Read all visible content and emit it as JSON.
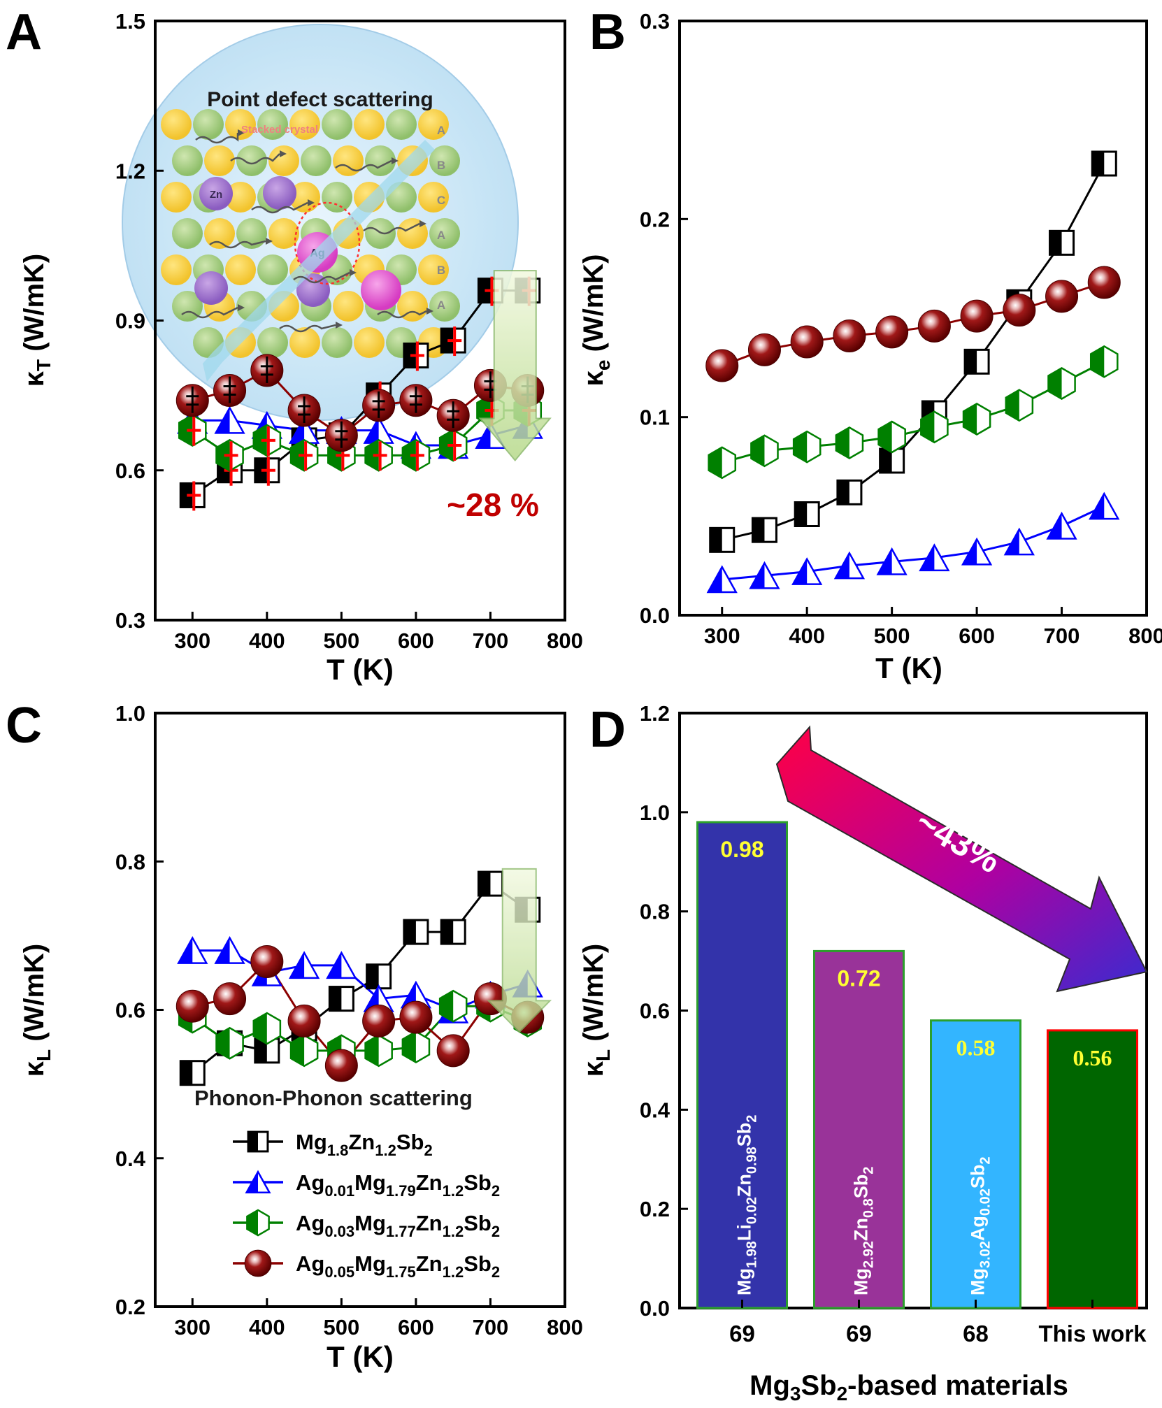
{
  "panels": [
    {
      "letter": "A"
    },
    {
      "letter": "B"
    },
    {
      "letter": "C"
    },
    {
      "letter": "D"
    }
  ],
  "inset": {
    "title": "Point defect scattering",
    "caption": "Stacked crystal",
    "atom_labels": [
      "Zn",
      "Ag"
    ],
    "stacking": [
      "A",
      "B",
      "C",
      "A",
      "B",
      "A"
    ]
  },
  "annotations": {
    "a_reduction": "~28 %",
    "c_scattering": "Phonon-Phonon scattering",
    "d_reduction": "~43%"
  },
  "legend": [
    {
      "marker": "square",
      "color": "#000000",
      "base": "Mg",
      "sub1": "1.8",
      "mid": "Zn",
      "sub2": "1.2",
      "end": "Sb",
      "sub3": "2"
    },
    {
      "marker": "triangle",
      "color": "#0000ff",
      "pre": "Ag",
      "sub0": "0.01",
      "base": "Mg",
      "sub1": "1.79",
      "mid": "Zn",
      "sub2": "1.2",
      "end": "Sb",
      "sub3": "2"
    },
    {
      "marker": "hexagon",
      "color": "#008000",
      "pre": "Ag",
      "sub0": "0.03",
      "base": "Mg",
      "sub1": "1.77",
      "mid": "Zn",
      "sub2": "1.2",
      "end": "Sb",
      "sub3": "2"
    },
    {
      "marker": "sphere",
      "color": "#8b0000",
      "pre": "Ag",
      "sub0": "0.05",
      "base": "Mg",
      "sub1": "1.75",
      "mid": "Zn",
      "sub2": "1.2",
      "end": "Sb",
      "sub3": "2"
    }
  ],
  "chart_data": [
    {
      "panel": "A",
      "type": "line",
      "xlabel": "T (K)",
      "ylabel": "κT (W/mK)",
      "ylabel_main": "κ",
      "ylabel_sub": "T",
      "ylabel_rest": " (W/mK)",
      "xlim": [
        250,
        800
      ],
      "ylim": [
        0.3,
        1.5
      ],
      "xticks": [
        300,
        400,
        500,
        600,
        700,
        800
      ],
      "yticks": [
        0.3,
        0.6,
        0.9,
        1.2,
        1.5
      ],
      "x": [
        300,
        350,
        400,
        450,
        500,
        550,
        600,
        650,
        700,
        750
      ],
      "series": [
        {
          "marker": "square",
          "color": "#000000",
          "values": [
            0.55,
            0.6,
            0.6,
            0.66,
            0.67,
            0.75,
            0.83,
            0.86,
            0.96,
            0.96
          ]
        },
        {
          "marker": "triangle",
          "color": "#0000ff",
          "values": [
            0.7,
            0.7,
            0.69,
            0.68,
            0.68,
            0.68,
            0.65,
            0.65,
            0.67,
            0.69
          ]
        },
        {
          "marker": "hexagon",
          "color": "#008000",
          "values": [
            0.68,
            0.63,
            0.66,
            0.63,
            0.63,
            0.63,
            0.63,
            0.65,
            0.72,
            0.72
          ]
        },
        {
          "marker": "sphere",
          "color": "#8b0000",
          "values": [
            0.74,
            0.76,
            0.8,
            0.72,
            0.67,
            0.73,
            0.74,
            0.71,
            0.77,
            0.76
          ]
        }
      ]
    },
    {
      "panel": "B",
      "type": "line",
      "xlabel": "T (K)",
      "ylabel": "κe (W/mK)",
      "ylabel_main": "κ",
      "ylabel_sub": "e",
      "ylabel_rest": " (W/mK)",
      "xlim": [
        250,
        800
      ],
      "ylim": [
        0.0,
        0.3
      ],
      "xticks": [
        300,
        400,
        500,
        600,
        700,
        800
      ],
      "yticks": [
        0.0,
        0.1,
        0.2,
        0.3
      ],
      "x": [
        300,
        350,
        400,
        450,
        500,
        550,
        600,
        650,
        700,
        750
      ],
      "series": [
        {
          "marker": "square",
          "color": "#000000",
          "values": [
            0.038,
            0.043,
            0.051,
            0.062,
            0.078,
            0.102,
            0.128,
            0.158,
            0.188,
            0.228
          ]
        },
        {
          "marker": "triangle",
          "color": "#0000ff",
          "values": [
            0.018,
            0.02,
            0.022,
            0.025,
            0.027,
            0.029,
            0.032,
            0.037,
            0.045,
            0.055
          ]
        },
        {
          "marker": "hexagon",
          "color": "#008000",
          "values": [
            0.077,
            0.083,
            0.085,
            0.087,
            0.09,
            0.095,
            0.099,
            0.106,
            0.117,
            0.128
          ]
        },
        {
          "marker": "sphere",
          "color": "#8b0000",
          "values": [
            0.126,
            0.134,
            0.138,
            0.141,
            0.143,
            0.146,
            0.151,
            0.154,
            0.161,
            0.168
          ]
        }
      ]
    },
    {
      "panel": "C",
      "type": "line",
      "xlabel": "T (K)",
      "ylabel": "κL (W/mK)",
      "ylabel_main": "κ",
      "ylabel_sub": "L",
      "ylabel_rest": " (W/mK)",
      "xlim": [
        250,
        800
      ],
      "ylim": [
        0.2,
        1.0
      ],
      "xticks": [
        300,
        400,
        500,
        600,
        700,
        800
      ],
      "yticks": [
        0.2,
        0.4,
        0.6,
        0.8,
        1.0
      ],
      "x": [
        300,
        350,
        400,
        450,
        500,
        550,
        600,
        650,
        700,
        750
      ],
      "series": [
        {
          "marker": "square",
          "color": "#000000",
          "values": [
            0.515,
            0.555,
            0.545,
            0.575,
            0.615,
            0.645,
            0.705,
            0.705,
            0.77,
            0.735
          ]
        },
        {
          "marker": "triangle",
          "color": "#0000ff",
          "values": [
            0.68,
            0.68,
            0.65,
            0.66,
            0.66,
            0.615,
            0.62,
            0.6,
            0.62,
            0.635
          ]
        },
        {
          "marker": "hexagon",
          "color": "#008000",
          "values": [
            0.59,
            0.555,
            0.575,
            0.545,
            0.545,
            0.545,
            0.55,
            0.605,
            0.605,
            0.585
          ]
        },
        {
          "marker": "sphere",
          "color": "#8b0000",
          "values": [
            0.605,
            0.615,
            0.665,
            0.585,
            0.525,
            0.585,
            0.59,
            0.545,
            0.615,
            0.59
          ]
        }
      ]
    },
    {
      "panel": "D",
      "type": "bar",
      "xlabel": "Mg3Sb2-based materials",
      "ylabel": "κL (W/mK)",
      "ylabel_main": "κ",
      "ylabel_sub": "L",
      "ylabel_rest": " (W/mK)",
      "ylim": [
        0.0,
        1.2
      ],
      "yticks": [
        0.0,
        0.2,
        0.4,
        0.6,
        0.8,
        1.0,
        1.2
      ],
      "categories": [
        "69",
        "69",
        "68",
        "This work"
      ],
      "values": [
        0.98,
        0.72,
        0.58,
        0.56
      ],
      "value_labels": [
        "0.98",
        "0.72",
        "0.58",
        "0.56"
      ],
      "bar_labels": [
        [
          [
            "Mg",
            ""
          ],
          [
            "1.98",
            "sub"
          ],
          [
            "Li",
            ""
          ],
          [
            "0.02",
            "sub"
          ],
          [
            "Zn",
            ""
          ],
          [
            "0.98",
            "sub"
          ],
          [
            "Sb",
            ""
          ],
          [
            "2",
            "sub"
          ]
        ],
        [
          [
            "Mg",
            ""
          ],
          [
            "2.92",
            "sub"
          ],
          [
            "Zn",
            ""
          ],
          [
            "0.8",
            "sub"
          ],
          [
            "Sb",
            ""
          ],
          [
            "2",
            "sub"
          ]
        ],
        [
          [
            "Mg",
            ""
          ],
          [
            "3.02",
            "sub"
          ],
          [
            "Ag",
            ""
          ],
          [
            "0.02",
            "sub"
          ],
          [
            "Sb",
            ""
          ],
          [
            "2",
            "sub"
          ]
        ],
        []
      ],
      "colors": [
        "#3333aa",
        "#993399",
        "#33b5ff",
        "#006600"
      ],
      "edge_colors": [
        "#2ca02c",
        "#2ca02c",
        "#2ca02c",
        "#ff0000"
      ]
    }
  ]
}
